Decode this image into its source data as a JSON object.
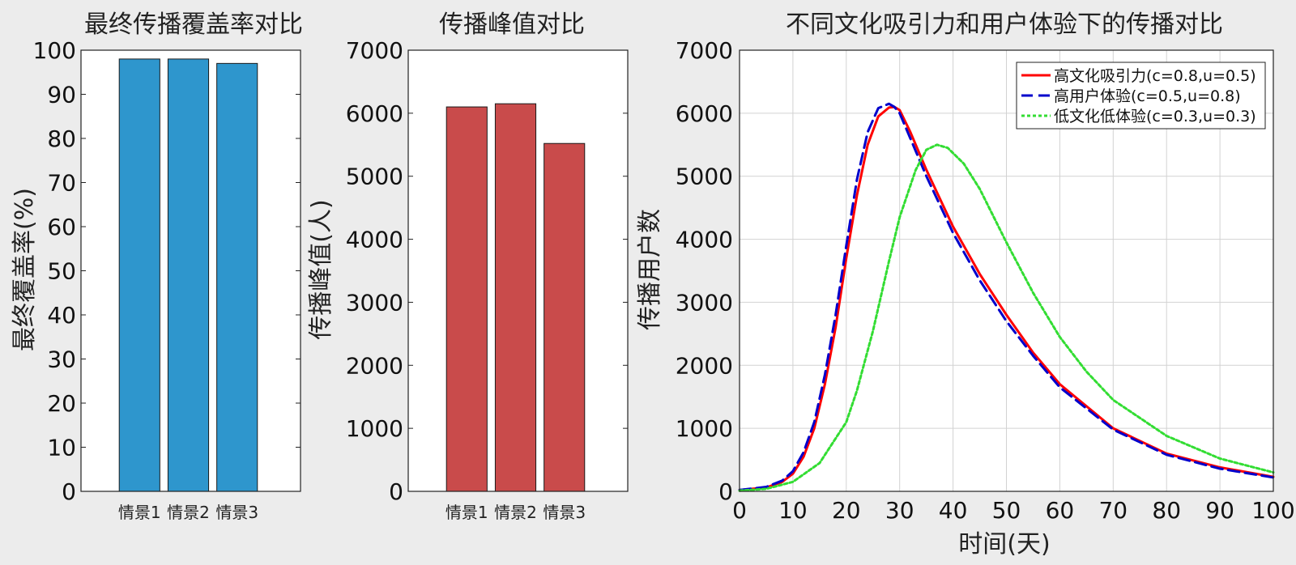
{
  "colors": {
    "background": "#ececec",
    "axes_bg": "#ffffff",
    "bar_coverage": "#2e96cd",
    "bar_peak": "#c94b4b",
    "grid": "#d2d2d2"
  },
  "chart_data": [
    {
      "type": "bar",
      "title": "最终传播覆盖率对比",
      "xlabel": "",
      "ylabel": "最终覆盖率(%)",
      "categories": [
        "情景1",
        "情景2",
        "情景3"
      ],
      "values": [
        98,
        98,
        97
      ],
      "ylim": [
        0,
        100
      ],
      "yticks": [
        0,
        10,
        20,
        30,
        40,
        50,
        60,
        70,
        80,
        90,
        100
      ],
      "grid": false,
      "color": "#2e96cd"
    },
    {
      "type": "bar",
      "title": "传播峰值对比",
      "xlabel": "",
      "ylabel": "传播峰值(人)",
      "categories": [
        "情景1",
        "情景2",
        "情景3"
      ],
      "values": [
        6100,
        6150,
        5520
      ],
      "ylim": [
        0,
        7000
      ],
      "yticks": [
        0,
        1000,
        2000,
        3000,
        4000,
        5000,
        6000,
        7000
      ],
      "grid": false,
      "color": "#c94b4b"
    },
    {
      "type": "line",
      "title": "不同文化吸引力和用户体验下的传播对比",
      "xlabel": "时间(天)",
      "ylabel": "传播用户数",
      "xlim": [
        0,
        100
      ],
      "ylim": [
        0,
        7000
      ],
      "xticks": [
        0,
        10,
        20,
        30,
        40,
        50,
        60,
        70,
        80,
        90,
        100
      ],
      "yticks": [
        0,
        1000,
        2000,
        3000,
        4000,
        5000,
        6000,
        7000
      ],
      "grid": true,
      "legend_position": "top-right",
      "series": [
        {
          "name": "高文化吸引力(c=0.8,u=0.5)",
          "color": "#ff0000",
          "style": "solid",
          "x": [
            0,
            5,
            8,
            10,
            12,
            14,
            16,
            18,
            20,
            22,
            24,
            26,
            28,
            29,
            30,
            32,
            35,
            40,
            45,
            50,
            55,
            60,
            70,
            80,
            90,
            100
          ],
          "y": [
            20,
            60,
            150,
            280,
            550,
            1000,
            1700,
            2600,
            3700,
            4700,
            5500,
            5950,
            6090,
            6100,
            6050,
            5700,
            5100,
            4200,
            3450,
            2800,
            2200,
            1700,
            1000,
            600,
            380,
            230
          ]
        },
        {
          "name": "高用户体验(c=0.5,u=0.8)",
          "color": "#0000cc",
          "style": "dashed",
          "x": [
            0,
            5,
            8,
            10,
            12,
            14,
            16,
            18,
            20,
            22,
            24,
            26,
            28,
            29,
            30,
            32,
            35,
            40,
            45,
            50,
            55,
            60,
            70,
            80,
            90,
            100
          ],
          "y": [
            20,
            70,
            170,
            320,
            620,
            1100,
            1850,
            2800,
            3900,
            4950,
            5700,
            6080,
            6150,
            6100,
            6000,
            5600,
            5000,
            4100,
            3350,
            2700,
            2150,
            1650,
            980,
            580,
            360,
            220
          ]
        },
        {
          "name": "低文化低体验(c=0.3,u=0.3)",
          "color": "#33dd33",
          "style": "dotted",
          "x": [
            0,
            5,
            10,
            15,
            20,
            22,
            25,
            28,
            30,
            33,
            35,
            37,
            39,
            42,
            45,
            50,
            55,
            60,
            65,
            70,
            80,
            90,
            100
          ],
          "y": [
            10,
            40,
            150,
            450,
            1100,
            1600,
            2550,
            3650,
            4350,
            5100,
            5420,
            5500,
            5450,
            5200,
            4800,
            3950,
            3150,
            2450,
            1900,
            1450,
            880,
            520,
            300
          ]
        }
      ]
    }
  ]
}
